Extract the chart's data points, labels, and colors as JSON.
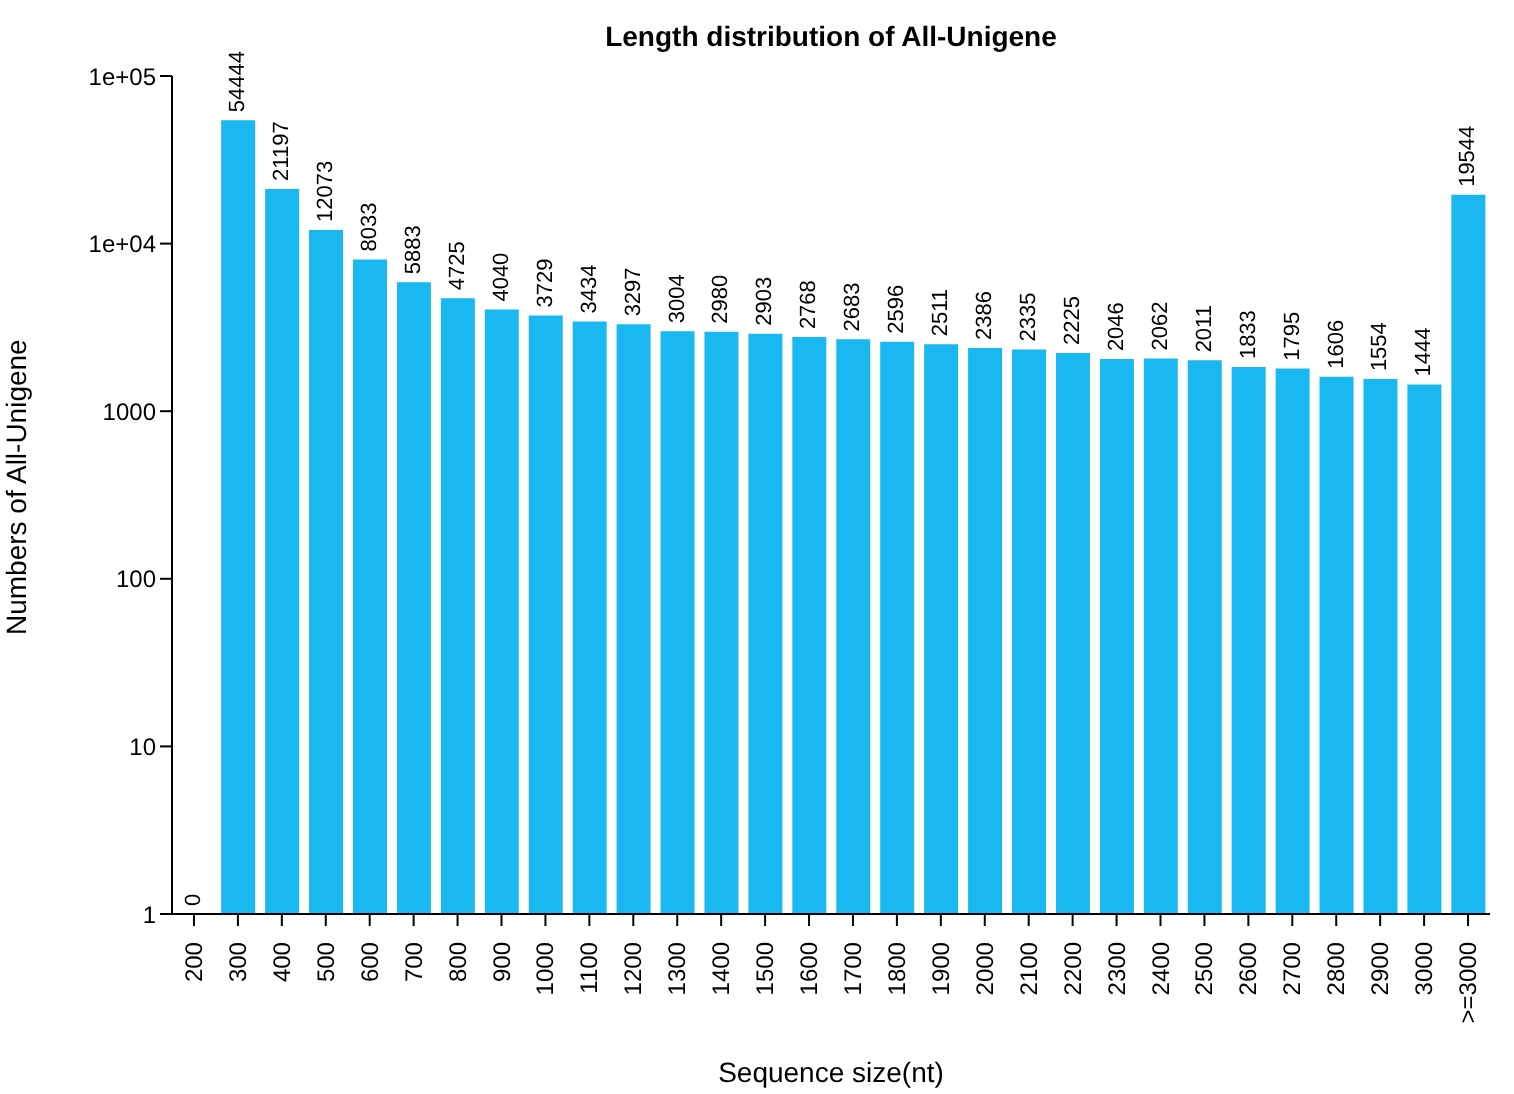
{
  "chart_data": {
    "type": "bar",
    "title": "Length distribution of All-Unigene",
    "xlabel": "Sequence size(nt)",
    "ylabel": "Numbers of All-Unigene",
    "categories": [
      "200",
      "300",
      "400",
      "500",
      "600",
      "700",
      "800",
      "900",
      "1000",
      "1100",
      "1200",
      "1300",
      "1400",
      "1500",
      "1600",
      "1700",
      "1800",
      "1900",
      "2000",
      "2100",
      "2200",
      "2300",
      "2400",
      "2500",
      "2600",
      "2700",
      "2800",
      "2900",
      "3000",
      ">=3000"
    ],
    "values": [
      null,
      54444,
      21197,
      12073,
      8033,
      5883,
      4725,
      4040,
      3729,
      3434,
      3297,
      3004,
      2980,
      2903,
      2768,
      2683,
      2596,
      2511,
      2386,
      2335,
      2225,
      2046,
      2062,
      2011,
      1833,
      1795,
      1606,
      1554,
      1444,
      19544
    ],
    "value_labels": [
      "0",
      "54444",
      "21197",
      "12073",
      "8033",
      "5883",
      "4725",
      "4040",
      "3729",
      "3434",
      "3297",
      "3004",
      "2980",
      "2903",
      "2768",
      "2683",
      "2596",
      "2511",
      "2386",
      "2335",
      "2225",
      "2046",
      "2062",
      "2011",
      "1833",
      "1795",
      "1606",
      "1554",
      "1444",
      "19544"
    ],
    "color": "#1ab8f0",
    "log": "y",
    "ylim": [
      1,
      100000
    ],
    "yticks": [
      1,
      10,
      100,
      1000,
      {
        "value": 10000,
        "label": "1e+04"
      },
      {
        "value": 100000,
        "label": "1e+05"
      }
    ]
  }
}
